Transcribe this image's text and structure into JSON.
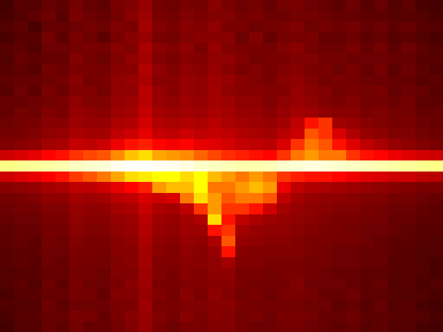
{
  "chart_data": {
    "type": "heatmap",
    "tick_labels": false,
    "zlim": [
      0,
      100
    ],
    "cells": [
      [
        10,
        13,
        12,
        15,
        14,
        17,
        15,
        14,
        18,
        19,
        22,
        17,
        16,
        18,
        17,
        20,
        18,
        16,
        17,
        15,
        17,
        18,
        16,
        15,
        14,
        16,
        13,
        15,
        12,
        14,
        11,
        10
      ],
      [
        11,
        12,
        14,
        16,
        13,
        18,
        16,
        15,
        17,
        20,
        23,
        18,
        17,
        19,
        18,
        19,
        19,
        17,
        18,
        16,
        16,
        17,
        17,
        16,
        15,
        15,
        14,
        14,
        13,
        13,
        12,
        11
      ],
      [
        12,
        14,
        11,
        15,
        15,
        16,
        17,
        16,
        19,
        18,
        24,
        19,
        18,
        20,
        19,
        21,
        18,
        18,
        16,
        17,
        18,
        19,
        16,
        17,
        16,
        17,
        15,
        16,
        14,
        15,
        13,
        12
      ],
      [
        11,
        13,
        13,
        17,
        14,
        18,
        16,
        14,
        18,
        20,
        22,
        18,
        17,
        19,
        20,
        20,
        20,
        16,
        19,
        15,
        17,
        18,
        18,
        15,
        15,
        16,
        14,
        15,
        13,
        14,
        12,
        11
      ],
      [
        13,
        14,
        12,
        16,
        16,
        17,
        18,
        17,
        20,
        19,
        25,
        20,
        19,
        21,
        18,
        22,
        19,
        18,
        18,
        17,
        19,
        20,
        17,
        16,
        16,
        18,
        15,
        17,
        14,
        16,
        14,
        12
      ],
      [
        12,
        15,
        14,
        15,
        15,
        19,
        17,
        16,
        19,
        21,
        24,
        19,
        18,
        20,
        19,
        21,
        21,
        19,
        17,
        18,
        18,
        19,
        19,
        17,
        17,
        16,
        16,
        16,
        15,
        15,
        13,
        13
      ],
      [
        13,
        14,
        13,
        17,
        16,
        18,
        18,
        17,
        20,
        20,
        26,
        21,
        19,
        21,
        20,
        22,
        20,
        18,
        19,
        17,
        19,
        20,
        18,
        18,
        16,
        18,
        15,
        17,
        14,
        16,
        14,
        12
      ],
      [
        14,
        15,
        15,
        16,
        17,
        20,
        17,
        18,
        21,
        22,
        25,
        20,
        20,
        22,
        21,
        23,
        22,
        20,
        19,
        18,
        20,
        21,
        19,
        17,
        18,
        17,
        16,
        16,
        15,
        15,
        13,
        14
      ],
      [
        13,
        16,
        14,
        18,
        16,
        19,
        19,
        17,
        21,
        21,
        27,
        22,
        20,
        22,
        21,
        24,
        21,
        20,
        20,
        19,
        19,
        22,
        20,
        19,
        17,
        18,
        17,
        18,
        15,
        16,
        15,
        13
      ],
      [
        15,
        15,
        16,
        17,
        18,
        21,
        19,
        19,
        22,
        23,
        27,
        22,
        21,
        23,
        22,
        24,
        23,
        21,
        21,
        19,
        21,
        22,
        21,
        19,
        18,
        19,
        17,
        17,
        16,
        17,
        14,
        14
      ],
      [
        15,
        17,
        16,
        19,
        18,
        22,
        21,
        20,
        23,
        24,
        29,
        24,
        23,
        24,
        23,
        25,
        24,
        22,
        22,
        20,
        22,
        24,
        23,
        21,
        20,
        20,
        18,
        19,
        17,
        17,
        15,
        15
      ],
      [
        16,
        17,
        18,
        20,
        20,
        23,
        22,
        22,
        25,
        26,
        31,
        26,
        25,
        26,
        25,
        27,
        25,
        24,
        23,
        22,
        24,
        28,
        40,
        45,
        24,
        22,
        20,
        19,
        18,
        18,
        16,
        15
      ],
      [
        17,
        18,
        19,
        21,
        22,
        25,
        24,
        24,
        28,
        30,
        34,
        29,
        28,
        30,
        28,
        29,
        28,
        26,
        25,
        24,
        27,
        30,
        50,
        45,
        32,
        26,
        22,
        21,
        19,
        19,
        17,
        16
      ],
      [
        19,
        20,
        21,
        24,
        25,
        29,
        28,
        30,
        35,
        40,
        42,
        38,
        36,
        38,
        34,
        33,
        31,
        29,
        28,
        27,
        32,
        45,
        55,
        50,
        40,
        33,
        28,
        25,
        22,
        21,
        19,
        18
      ],
      [
        30,
        32,
        34,
        38,
        40,
        45,
        48,
        50,
        58,
        66,
        70,
        62,
        60,
        58,
        52,
        48,
        44,
        42,
        40,
        38,
        45,
        55,
        60,
        55,
        55,
        45,
        40,
        38,
        35,
        33,
        31,
        30
      ],
      [
        88,
        89,
        90,
        91,
        92,
        94,
        95,
        96,
        98,
        100,
        100,
        99,
        98,
        97,
        95,
        94,
        93,
        92,
        92,
        93,
        95,
        96,
        97,
        96,
        95,
        94,
        93,
        92,
        91,
        90,
        89,
        88
      ],
      [
        30,
        32,
        34,
        37,
        40,
        46,
        50,
        55,
        62,
        70,
        72,
        75,
        75,
        70,
        75,
        65,
        60,
        55,
        60,
        55,
        45,
        42,
        40,
        40,
        38,
        35,
        33,
        32,
        30,
        30,
        28,
        27
      ],
      [
        20,
        21,
        22,
        24,
        25,
        28,
        28,
        30,
        34,
        38,
        42,
        60,
        65,
        65,
        75,
        55,
        55,
        60,
        65,
        60,
        35,
        28,
        26,
        25,
        24,
        23,
        22,
        21,
        20,
        19,
        18,
        18
      ],
      [
        17,
        18,
        19,
        21,
        21,
        24,
        23,
        24,
        27,
        28,
        32,
        30,
        32,
        55,
        70,
        60,
        50,
        55,
        55,
        50,
        28,
        24,
        22,
        21,
        21,
        20,
        19,
        19,
        17,
        17,
        16,
        15
      ],
      [
        16,
        17,
        17,
        19,
        19,
        22,
        21,
        21,
        24,
        25,
        29,
        25,
        24,
        28,
        45,
        60,
        45,
        45,
        40,
        30,
        24,
        22,
        21,
        20,
        19,
        19,
        18,
        17,
        16,
        16,
        15,
        14
      ],
      [
        15,
        16,
        16,
        18,
        18,
        21,
        20,
        20,
        22,
        23,
        27,
        23,
        22,
        24,
        26,
        70,
        40,
        28,
        25,
        23,
        22,
        21,
        20,
        19,
        18,
        18,
        17,
        17,
        15,
        15,
        14,
        14
      ],
      [
        14,
        15,
        15,
        17,
        17,
        20,
        19,
        19,
        21,
        22,
        26,
        22,
        21,
        23,
        23,
        40,
        45,
        24,
        22,
        21,
        21,
        20,
        19,
        18,
        18,
        17,
        16,
        16,
        15,
        14,
        13,
        13
      ],
      [
        14,
        15,
        14,
        17,
        16,
        19,
        18,
        18,
        20,
        21,
        25,
        21,
        20,
        22,
        21,
        25,
        50,
        22,
        21,
        20,
        20,
        19,
        18,
        18,
        17,
        17,
        16,
        15,
        14,
        14,
        13,
        12
      ],
      [
        13,
        14,
        14,
        16,
        16,
        18,
        18,
        17,
        20,
        20,
        24,
        20,
        19,
        21,
        20,
        22,
        40,
        20,
        19,
        19,
        19,
        19,
        18,
        17,
        16,
        16,
        15,
        15,
        14,
        13,
        12,
        12
      ],
      [
        13,
        14,
        13,
        16,
        15,
        18,
        17,
        17,
        19,
        20,
        24,
        19,
        19,
        20,
        20,
        21,
        24,
        19,
        19,
        18,
        18,
        18,
        17,
        17,
        16,
        16,
        15,
        15,
        13,
        13,
        12,
        11
      ],
      [
        12,
        13,
        13,
        15,
        15,
        17,
        17,
        16,
        19,
        19,
        23,
        19,
        18,
        20,
        19,
        21,
        21,
        18,
        18,
        17,
        18,
        18,
        17,
        16,
        15,
        15,
        14,
        14,
        13,
        13,
        12,
        11
      ],
      [
        12,
        14,
        12,
        16,
        14,
        18,
        16,
        16,
        18,
        20,
        23,
        18,
        18,
        19,
        19,
        20,
        20,
        18,
        17,
        17,
        17,
        19,
        16,
        16,
        16,
        15,
        14,
        15,
        12,
        13,
        11,
        12
      ],
      [
        11,
        13,
        13,
        15,
        15,
        17,
        17,
        15,
        19,
        19,
        22,
        19,
        17,
        20,
        18,
        21,
        19,
        17,
        18,
        16,
        18,
        18,
        17,
        15,
        15,
        16,
        14,
        14,
        13,
        12,
        12,
        11
      ],
      [
        12,
        12,
        12,
        16,
        14,
        16,
        16,
        16,
        18,
        18,
        23,
        18,
        18,
        19,
        19,
        20,
        20,
        18,
        17,
        17,
        17,
        17,
        16,
        16,
        14,
        15,
        13,
        15,
        12,
        13,
        11,
        10
      ],
      [
        11,
        13,
        13,
        15,
        15,
        18,
        17,
        15,
        18,
        20,
        22,
        19,
        17,
        20,
        18,
        20,
        19,
        17,
        18,
        16,
        18,
        18,
        17,
        15,
        15,
        16,
        14,
        14,
        13,
        13,
        12,
        11
      ],
      [
        10,
        12,
        12,
        15,
        14,
        17,
        15,
        15,
        17,
        19,
        22,
        18,
        16,
        18,
        18,
        19,
        19,
        17,
        16,
        16,
        17,
        17,
        16,
        15,
        14,
        15,
        13,
        14,
        12,
        12,
        11,
        10
      ]
    ]
  }
}
